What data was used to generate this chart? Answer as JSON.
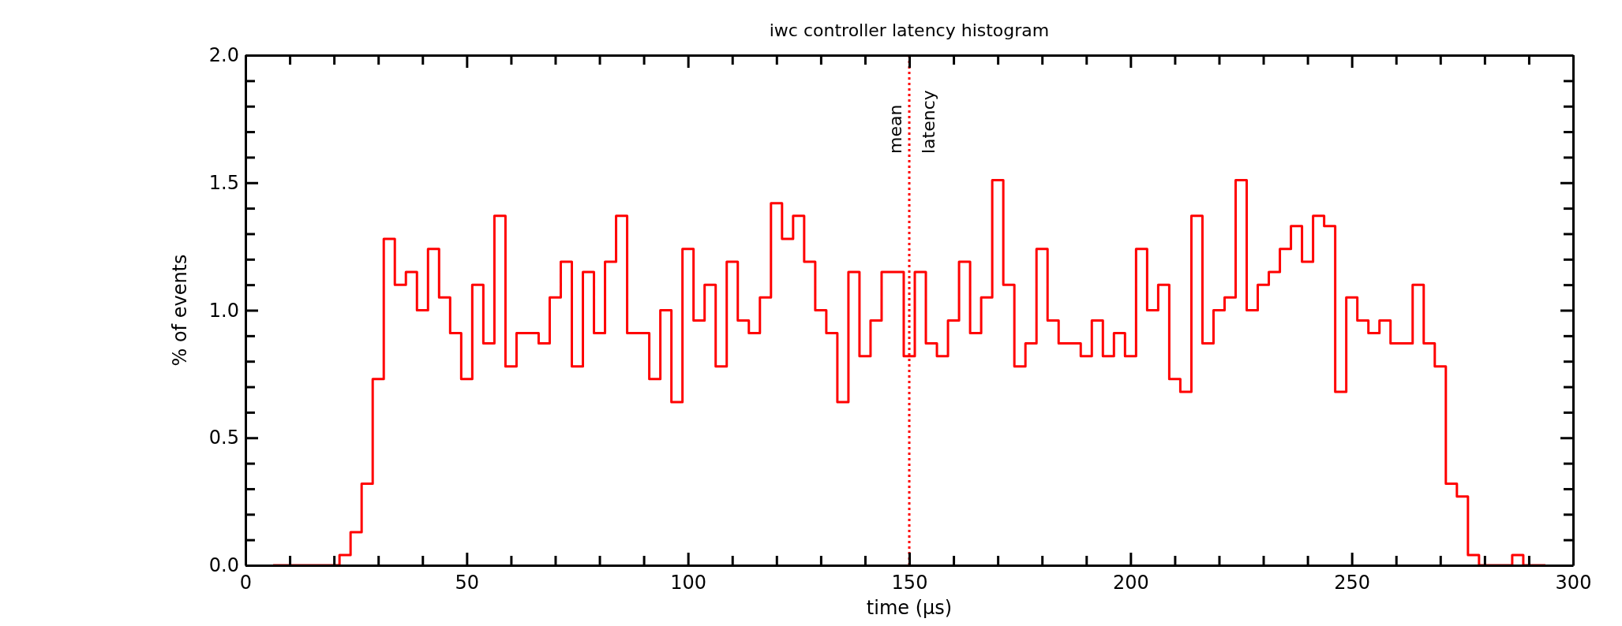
{
  "chart_data": {
    "type": "histogram",
    "title": "iwc controller latency histogram",
    "xlabel": "time (μs)",
    "ylabel": "% of events",
    "color": "#ff0000",
    "bins": [
      6.25,
      8.75,
      11.25,
      13.75,
      16.25,
      18.75,
      21.25,
      23.75,
      26.25,
      28.75,
      31.25,
      33.75,
      36.25,
      38.75,
      41.25,
      43.75,
      46.25,
      48.75,
      51.25,
      53.75,
      56.25,
      58.75,
      61.25,
      63.75,
      66.25,
      68.75,
      71.25,
      73.75,
      76.25,
      78.75,
      81.25,
      83.75,
      86.25,
      88.75,
      91.25,
      93.75,
      96.25,
      98.75,
      101.25,
      103.75,
      106.25,
      108.75,
      111.25,
      113.75,
      116.25,
      118.75,
      121.25,
      123.75,
      126.25,
      128.75,
      131.25,
      133.75,
      136.25,
      138.75,
      141.25,
      143.75,
      146.25,
      148.75,
      151.25,
      153.75,
      156.25,
      158.75,
      161.25,
      163.75,
      166.25,
      168.75,
      171.25,
      173.75,
      176.25,
      178.75,
      181.25,
      183.75,
      186.25,
      188.75,
      191.25,
      193.75,
      196.25,
      198.75,
      201.25,
      203.75,
      206.25,
      208.75,
      211.25,
      213.75,
      216.25,
      218.75,
      221.25,
      223.75,
      226.25,
      228.75,
      231.25,
      233.75,
      236.25,
      238.75,
      241.25,
      243.75,
      246.25,
      248.75,
      251.25,
      253.75,
      256.25,
      258.75,
      261.25,
      263.75,
      266.25,
      268.75,
      271.25,
      273.75,
      276.25,
      278.75,
      281.25,
      283.75,
      286.25,
      288.75,
      291.25,
      293.75
    ],
    "values": [
      0,
      0,
      0,
      0,
      0,
      0,
      0.04,
      0.13,
      0.32,
      0.73,
      1.28,
      1.1,
      1.15,
      1.0,
      1.24,
      1.05,
      0.91,
      0.73,
      1.1,
      0.87,
      1.37,
      0.78,
      0.91,
      0.91,
      0.87,
      1.05,
      1.19,
      0.78,
      1.15,
      0.91,
      1.19,
      1.37,
      0.91,
      0.91,
      0.73,
      1.0,
      0.64,
      1.24,
      0.96,
      1.1,
      0.78,
      1.19,
      0.96,
      0.91,
      1.05,
      1.42,
      1.28,
      1.37,
      1.19,
      1.0,
      0.91,
      0.64,
      1.15,
      0.82,
      0.96,
      1.15,
      1.15,
      0.82,
      1.15,
      0.87,
      0.82,
      0.96,
      1.19,
      0.91,
      1.05,
      1.51,
      1.1,
      0.78,
      0.87,
      1.24,
      0.96,
      0.87,
      0.87,
      0.82,
      0.96,
      0.82,
      0.91,
      0.82,
      1.24,
      1.0,
      1.1,
      0.73,
      0.68,
      1.37,
      0.87,
      1.0,
      1.05,
      1.51,
      1.0,
      1.1,
      1.15,
      1.24,
      1.33,
      1.19,
      1.37,
      1.33,
      0.68,
      1.05,
      0.96,
      0.91,
      0.96,
      0.87,
      0.87,
      1.1,
      0.87,
      0.78,
      0.32,
      0.27,
      0.04,
      0,
      0,
      0,
      0.04,
      0,
      0
    ],
    "xlim": [
      0,
      300
    ],
    "xticks": [
      0,
      {
        "value": 10,
        "label": null
      },
      {
        "value": 20,
        "label": null
      },
      {
        "value": 30,
        "label": null
      },
      {
        "value": 40,
        "label": null
      },
      50,
      {
        "value": 60,
        "label": null
      },
      {
        "value": 70,
        "label": null
      },
      {
        "value": 80,
        "label": null
      },
      {
        "value": 90,
        "label": null
      },
      100,
      {
        "value": 110,
        "label": null
      },
      {
        "value": 120,
        "label": null
      },
      {
        "value": 130,
        "label": null
      },
      {
        "value": 140,
        "label": null
      },
      150,
      {
        "value": 160,
        "label": null
      },
      {
        "value": 170,
        "label": null
      },
      {
        "value": 180,
        "label": null
      },
      {
        "value": 190,
        "label": null
      },
      200,
      {
        "value": 210,
        "label": null
      },
      {
        "value": 220,
        "label": null
      },
      {
        "value": 230,
        "label": null
      },
      {
        "value": 240,
        "label": null
      },
      250,
      {
        "value": 260,
        "label": null
      },
      {
        "value": 270,
        "label": null
      },
      {
        "value": 280,
        "label": null
      },
      {
        "value": 290,
        "label": null
      },
      300
    ],
    "ylim": [
      0,
      2
    ],
    "yticks": [
      {
        "value": 0,
        "label": "0.0"
      },
      {
        "value": 0.1,
        "label": null
      },
      {
        "value": 0.2,
        "label": null
      },
      {
        "value": 0.3,
        "label": null
      },
      {
        "value": 0.4,
        "label": null
      },
      {
        "value": 0.5,
        "label": "0.5"
      },
      {
        "value": 0.6,
        "label": null
      },
      {
        "value": 0.7,
        "label": null
      },
      {
        "value": 0.8,
        "label": null
      },
      {
        "value": 0.9,
        "label": null
      },
      {
        "value": 1,
        "label": "1.0"
      },
      {
        "value": 1.1,
        "label": null
      },
      {
        "value": 1.2,
        "label": null
      },
      {
        "value": 1.3,
        "label": null
      },
      {
        "value": 1.4,
        "label": null
      },
      {
        "value": 1.5,
        "label": "1.5"
      },
      {
        "value": 1.6,
        "label": null
      },
      {
        "value": 1.7,
        "label": null
      },
      {
        "value": 1.8,
        "label": null
      },
      {
        "value": 1.9,
        "label": null
      },
      {
        "value": 2,
        "label": "2.0"
      }
    ],
    "ref_lines": [
      {
        "axis": "x",
        "value": 150,
        "label": "mean latency",
        "color": "#ff0000",
        "line_style": "dotted"
      }
    ],
    "grid": false
  }
}
